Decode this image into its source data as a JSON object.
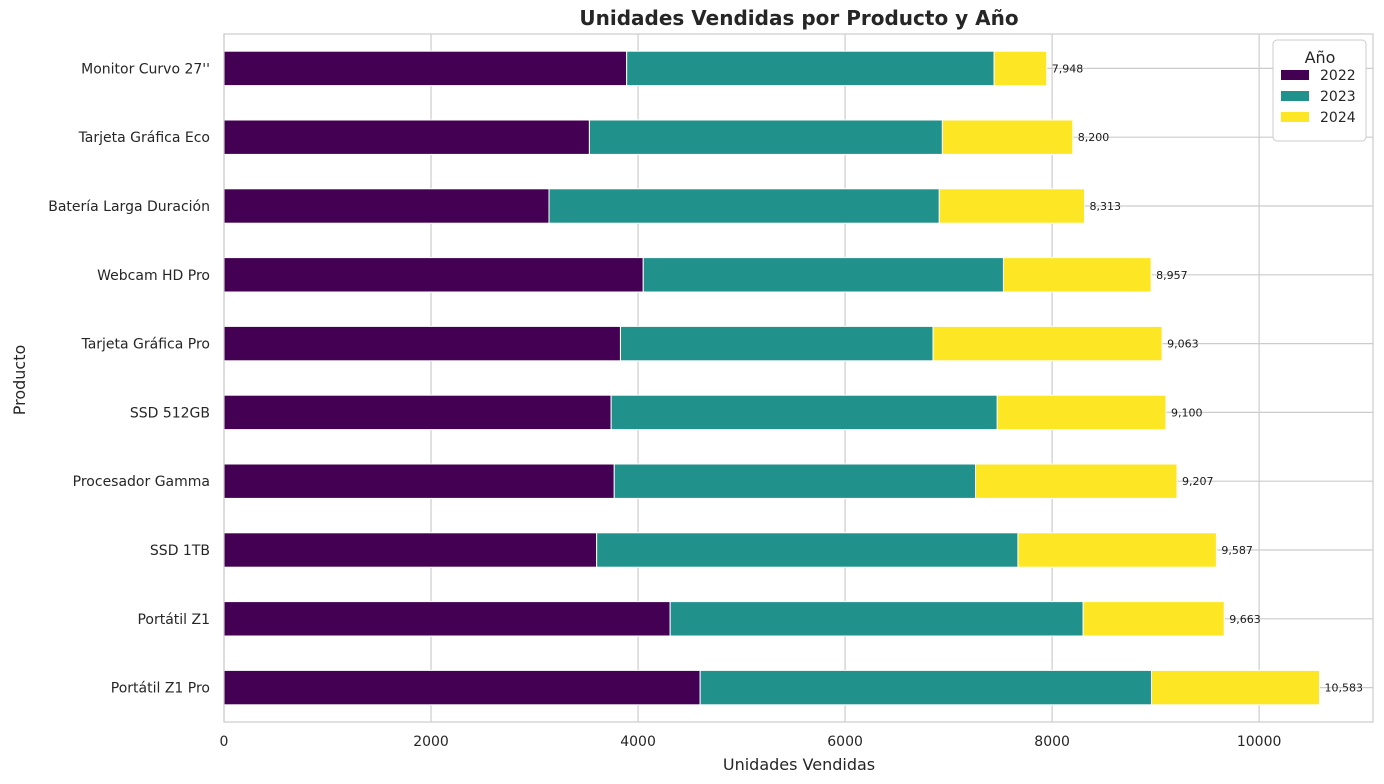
{
  "chart_data": {
    "type": "bar",
    "orientation": "horizontal",
    "stacked": true,
    "title": "Unidades Vendidas por Producto y Año",
    "xlabel": "Unidades Vendidas",
    "ylabel": "Producto",
    "xlim": [
      0,
      11100
    ],
    "xticks": [
      0,
      2000,
      4000,
      6000,
      8000,
      10000
    ],
    "xtick_labels": [
      "0",
      "2000",
      "4000",
      "6000",
      "8000",
      "10000"
    ],
    "grid": true,
    "legend": {
      "title": "Año",
      "position": "top-right"
    },
    "categories": [
      "Portátil Z1 Pro",
      "Portátil Z1",
      "SSD 1TB",
      "Procesador Gamma",
      "SSD 512GB",
      "Tarjeta Gráfica Pro",
      "Webcam HD Pro",
      "Batería Larga Duración",
      "Tarjeta Gráfica Eco",
      "Monitor Curvo 27''"
    ],
    "series": [
      {
        "name": "2022",
        "color": "#440154",
        "values": [
          4600,
          4310,
          3600,
          3770,
          3740,
          3830,
          4050,
          3140,
          3530,
          3890
        ]
      },
      {
        "name": "2023",
        "color": "#21918c",
        "values": [
          4360,
          3990,
          4070,
          3490,
          3730,
          3020,
          3480,
          3770,
          3410,
          3550
        ]
      },
      {
        "name": "2024",
        "color": "#fde725",
        "values": [
          1623,
          1363,
          1917,
          1947,
          1630,
          2213,
          1427,
          1403,
          1260,
          508
        ]
      }
    ],
    "totals": [
      10583,
      9663,
      9587,
      9207,
      9100,
      9063,
      8957,
      8313,
      8200,
      7948
    ],
    "total_labels": [
      "10,583",
      "9,663",
      "9,587",
      "9,207",
      "9,100",
      "9,063",
      "8,957",
      "8,313",
      "8,200",
      "7,948"
    ]
  }
}
